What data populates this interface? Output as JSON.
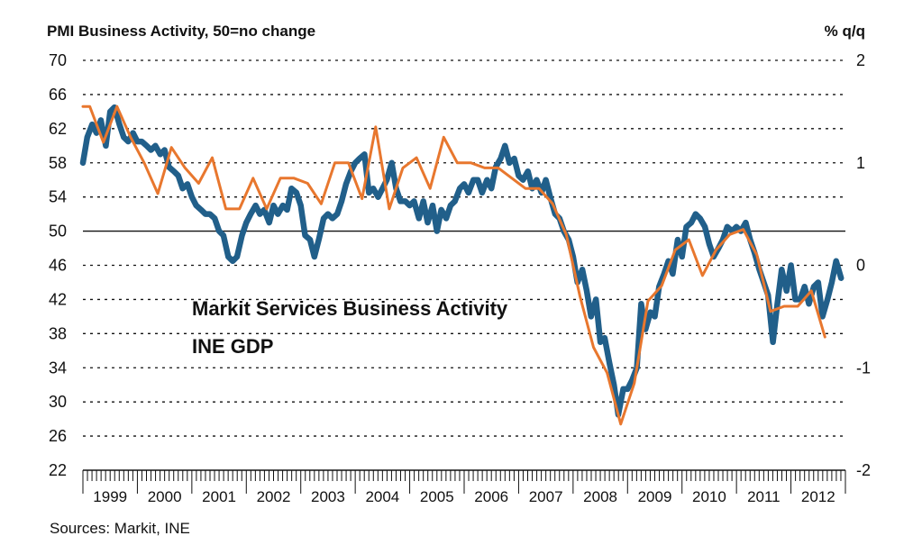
{
  "chart_data": {
    "type": "line",
    "title": "PMI Business Activity, 50=no change",
    "right_axis_title": "% q/q",
    "source": "Sources: Markit, INE",
    "ylim_left": [
      22,
      70
    ],
    "yticks_left": [
      "70",
      "66",
      "62",
      "58",
      "54",
      "50",
      "46",
      "42",
      "38",
      "34",
      "30",
      "26",
      "22"
    ],
    "ylim_right": [
      -2,
      2
    ],
    "yticks_right": [
      "2",
      "1",
      "0",
      "-1",
      "-2"
    ],
    "xlim": [
      1999,
      2013
    ],
    "year_labels": [
      "1999",
      "2000",
      "2001",
      "2002",
      "2003",
      "2004",
      "2005",
      "2006",
      "2007",
      "2008",
      "2009",
      "2010",
      "2011",
      "2012"
    ],
    "reference_line": 50,
    "gridlines": "dashed",
    "series": [
      {
        "name": "Markit Services Business Activity",
        "axis": "left",
        "color": "#215f8a",
        "points": [
          [
            1999.0,
            58.0
          ],
          [
            1999.08,
            61.0
          ],
          [
            1999.17,
            62.5
          ],
          [
            1999.25,
            61.5
          ],
          [
            1999.33,
            63.0
          ],
          [
            1999.42,
            60.0
          ],
          [
            1999.5,
            64.0
          ],
          [
            1999.58,
            64.5
          ],
          [
            1999.67,
            62.5
          ],
          [
            1999.75,
            61.0
          ],
          [
            1999.83,
            60.5
          ],
          [
            1999.92,
            61.5
          ],
          [
            2000.0,
            60.5
          ],
          [
            2000.08,
            60.5
          ],
          [
            2000.17,
            60.0
          ],
          [
            2000.25,
            59.5
          ],
          [
            2000.33,
            60.0
          ],
          [
            2000.42,
            59.0
          ],
          [
            2000.5,
            59.5
          ],
          [
            2000.58,
            57.5
          ],
          [
            2000.67,
            57.0
          ],
          [
            2000.75,
            56.5
          ],
          [
            2000.83,
            55.0
          ],
          [
            2000.92,
            55.5
          ],
          [
            2001.0,
            54.0
          ],
          [
            2001.08,
            53.0
          ],
          [
            2001.17,
            52.5
          ],
          [
            2001.25,
            52.0
          ],
          [
            2001.33,
            52.0
          ],
          [
            2001.42,
            51.5
          ],
          [
            2001.5,
            50.0
          ],
          [
            2001.58,
            49.5
          ],
          [
            2001.67,
            47.0
          ],
          [
            2001.75,
            46.5
          ],
          [
            2001.83,
            47.0
          ],
          [
            2001.92,
            49.5
          ],
          [
            2002.0,
            51.0
          ],
          [
            2002.08,
            52.0
          ],
          [
            2002.17,
            53.0
          ],
          [
            2002.25,
            52.0
          ],
          [
            2002.33,
            52.5
          ],
          [
            2002.42,
            51.0
          ],
          [
            2002.5,
            53.0
          ],
          [
            2002.58,
            52.0
          ],
          [
            2002.67,
            53.0
          ],
          [
            2002.75,
            52.5
          ],
          [
            2002.83,
            55.0
          ],
          [
            2002.92,
            54.5
          ],
          [
            2003.0,
            53.0
          ],
          [
            2003.08,
            49.5
          ],
          [
            2003.17,
            49.0
          ],
          [
            2003.25,
            47.0
          ],
          [
            2003.33,
            49.0
          ],
          [
            2003.42,
            51.5
          ],
          [
            2003.5,
            52.0
          ],
          [
            2003.58,
            51.5
          ],
          [
            2003.67,
            52.0
          ],
          [
            2003.75,
            53.5
          ],
          [
            2003.83,
            55.5
          ],
          [
            2003.92,
            57.0
          ],
          [
            2004.0,
            58.0
          ],
          [
            2004.08,
            58.5
          ],
          [
            2004.17,
            59.0
          ],
          [
            2004.25,
            54.5
          ],
          [
            2004.33,
            55.0
          ],
          [
            2004.42,
            54.0
          ],
          [
            2004.5,
            55.0
          ],
          [
            2004.58,
            56.0
          ],
          [
            2004.67,
            58.0
          ],
          [
            2004.75,
            55.0
          ],
          [
            2004.83,
            53.5
          ],
          [
            2004.92,
            53.5
          ],
          [
            2005.0,
            53.0
          ],
          [
            2005.08,
            53.5
          ],
          [
            2005.17,
            51.5
          ],
          [
            2005.25,
            53.5
          ],
          [
            2005.33,
            51.0
          ],
          [
            2005.42,
            53.0
          ],
          [
            2005.5,
            50.0
          ],
          [
            2005.58,
            52.5
          ],
          [
            2005.67,
            51.5
          ],
          [
            2005.75,
            53.0
          ],
          [
            2005.83,
            53.5
          ],
          [
            2005.92,
            55.0
          ],
          [
            2006.0,
            55.5
          ],
          [
            2006.08,
            54.5
          ],
          [
            2006.17,
            56.0
          ],
          [
            2006.25,
            56.0
          ],
          [
            2006.33,
            54.5
          ],
          [
            2006.42,
            56.0
          ],
          [
            2006.5,
            55.0
          ],
          [
            2006.58,
            57.5
          ],
          [
            2006.67,
            58.5
          ],
          [
            2006.75,
            60.0
          ],
          [
            2006.83,
            58.0
          ],
          [
            2006.92,
            58.5
          ],
          [
            2007.0,
            56.5
          ],
          [
            2007.08,
            56.0
          ],
          [
            2007.17,
            57.0
          ],
          [
            2007.25,
            55.0
          ],
          [
            2007.33,
            56.0
          ],
          [
            2007.42,
            54.5
          ],
          [
            2007.5,
            56.0
          ],
          [
            2007.58,
            54.0
          ],
          [
            2007.67,
            52.0
          ],
          [
            2007.75,
            51.5
          ],
          [
            2007.83,
            50.0
          ],
          [
            2007.92,
            49.0
          ],
          [
            2008.0,
            47.0
          ],
          [
            2008.08,
            44.0
          ],
          [
            2008.17,
            45.5
          ],
          [
            2008.25,
            43.0
          ],
          [
            2008.33,
            40.0
          ],
          [
            2008.42,
            42.0
          ],
          [
            2008.5,
            37.0
          ],
          [
            2008.58,
            37.5
          ],
          [
            2008.67,
            34.5
          ],
          [
            2008.75,
            32.0
          ],
          [
            2008.83,
            28.5
          ],
          [
            2008.92,
            31.5
          ],
          [
            2009.0,
            31.5
          ],
          [
            2009.08,
            32.5
          ],
          [
            2009.17,
            34.0
          ],
          [
            2009.25,
            41.5
          ],
          [
            2009.33,
            38.5
          ],
          [
            2009.42,
            40.5
          ],
          [
            2009.5,
            40.0
          ],
          [
            2009.58,
            43.5
          ],
          [
            2009.67,
            45.0
          ],
          [
            2009.75,
            46.5
          ],
          [
            2009.83,
            45.0
          ],
          [
            2009.92,
            49.0
          ],
          [
            2010.0,
            47.0
          ],
          [
            2010.08,
            50.5
          ],
          [
            2010.17,
            51.0
          ],
          [
            2010.25,
            52.0
          ],
          [
            2010.33,
            51.5
          ],
          [
            2010.42,
            50.5
          ],
          [
            2010.5,
            48.5
          ],
          [
            2010.58,
            47.0
          ],
          [
            2010.67,
            48.0
          ],
          [
            2010.75,
            49.0
          ],
          [
            2010.83,
            50.5
          ],
          [
            2010.92,
            50.0
          ],
          [
            2011.0,
            50.5
          ],
          [
            2011.08,
            50.0
          ],
          [
            2011.17,
            51.0
          ],
          [
            2011.25,
            49.0
          ],
          [
            2011.33,
            47.5
          ],
          [
            2011.42,
            45.5
          ],
          [
            2011.5,
            44.0
          ],
          [
            2011.58,
            42.5
          ],
          [
            2011.67,
            37.0
          ],
          [
            2011.75,
            41.5
          ],
          [
            2011.83,
            45.5
          ],
          [
            2011.92,
            43.0
          ],
          [
            2012.0,
            46.0
          ],
          [
            2012.08,
            42.0
          ],
          [
            2012.17,
            42.0
          ],
          [
            2012.25,
            43.5
          ],
          [
            2012.33,
            41.5
          ],
          [
            2012.42,
            43.5
          ],
          [
            2012.5,
            44.0
          ],
          [
            2012.58,
            40.0
          ],
          [
            2012.67,
            42.0
          ],
          [
            2012.75,
            44.0
          ],
          [
            2012.83,
            46.5
          ],
          [
            2012.92,
            44.5
          ]
        ]
      },
      {
        "name": "INE GDP",
        "axis": "right",
        "color": "#e8772e",
        "points": [
          [
            1999.0,
            1.55
          ],
          [
            1999.125,
            1.55
          ],
          [
            1999.375,
            1.2
          ],
          [
            1999.625,
            1.55
          ],
          [
            1999.875,
            1.25
          ],
          [
            2000.125,
            1.0
          ],
          [
            2000.375,
            0.7
          ],
          [
            2000.625,
            1.15
          ],
          [
            2000.875,
            0.95
          ],
          [
            2001.125,
            0.8
          ],
          [
            2001.375,
            1.05
          ],
          [
            2001.625,
            0.55
          ],
          [
            2001.875,
            0.55
          ],
          [
            2002.125,
            0.85
          ],
          [
            2002.375,
            0.55
          ],
          [
            2002.625,
            0.85
          ],
          [
            2002.875,
            0.85
          ],
          [
            2003.125,
            0.8
          ],
          [
            2003.375,
            0.6
          ],
          [
            2003.625,
            1.0
          ],
          [
            2003.875,
            1.0
          ],
          [
            2004.125,
            0.65
          ],
          [
            2004.375,
            1.35
          ],
          [
            2004.625,
            0.55
          ],
          [
            2004.875,
            0.95
          ],
          [
            2005.125,
            1.05
          ],
          [
            2005.375,
            0.75
          ],
          [
            2005.625,
            1.25
          ],
          [
            2005.875,
            1.0
          ],
          [
            2006.125,
            1.0
          ],
          [
            2006.375,
            0.95
          ],
          [
            2006.625,
            0.95
          ],
          [
            2006.875,
            0.85
          ],
          [
            2007.125,
            0.75
          ],
          [
            2007.375,
            0.75
          ],
          [
            2007.625,
            0.6
          ],
          [
            2007.875,
            0.3
          ],
          [
            2008.125,
            -0.3
          ],
          [
            2008.375,
            -0.8
          ],
          [
            2008.625,
            -1.05
          ],
          [
            2008.875,
            -1.55
          ],
          [
            2009.125,
            -1.15
          ],
          [
            2009.375,
            -0.35
          ],
          [
            2009.625,
            -0.2
          ],
          [
            2009.875,
            0.15
          ],
          [
            2010.125,
            0.25
          ],
          [
            2010.375,
            -0.1
          ],
          [
            2010.625,
            0.15
          ],
          [
            2010.875,
            0.3
          ],
          [
            2011.125,
            0.35
          ],
          [
            2011.375,
            0.1
          ],
          [
            2011.625,
            -0.45
          ],
          [
            2011.875,
            -0.4
          ],
          [
            2012.125,
            -0.4
          ],
          [
            2012.375,
            -0.25
          ],
          [
            2012.625,
            -0.7
          ]
        ]
      }
    ]
  },
  "legend": {
    "services": "Markit Services Business Activity",
    "gdp": "INE GDP"
  }
}
